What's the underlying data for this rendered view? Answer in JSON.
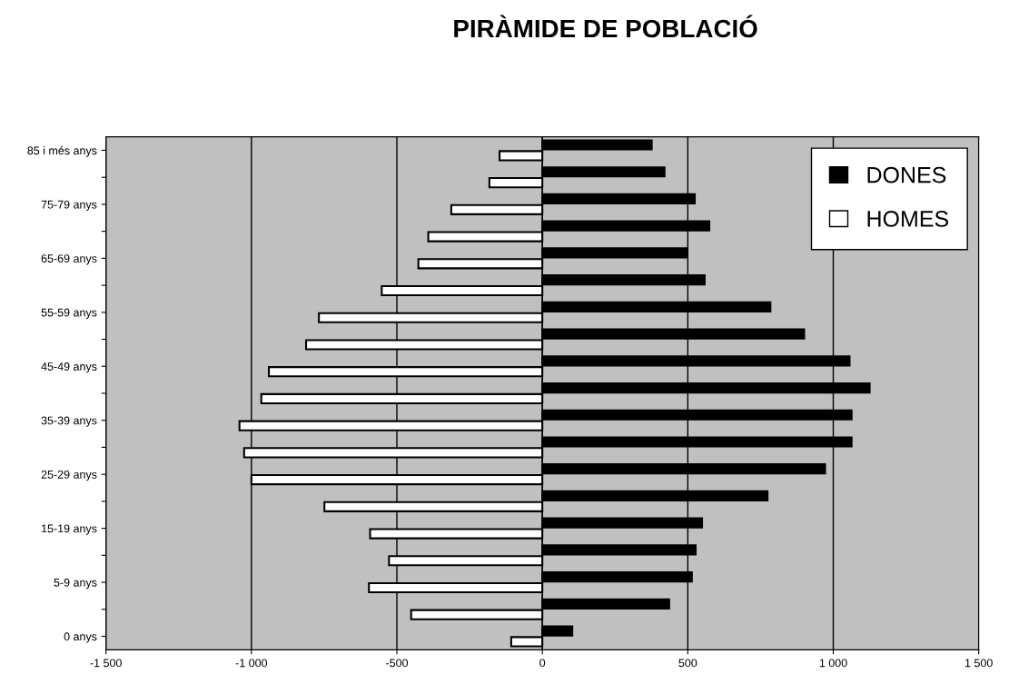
{
  "chart_data": {
    "type": "bar",
    "orientation": "horizontal",
    "title": "PIRÀMIDE DE POBLACIÓ",
    "categories": [
      "85 i més anys",
      null,
      "75-79 anys",
      null,
      "65-69 anys",
      null,
      "55-59 anys",
      null,
      "45-49 anys",
      null,
      "35-39 anys",
      null,
      "25-29 anys",
      null,
      "15-19 anys",
      null,
      "5-9 anys",
      null,
      "0 anys"
    ],
    "series": [
      {
        "name": "DONES",
        "color": "#000000",
        "values": [
          376,
          420,
          524,
          574,
          498,
          558,
          784,
          900,
          1056,
          1125,
          1063,
          1063,
          972,
          774,
          549,
          527,
          514,
          436,
          103
        ]
      },
      {
        "name": "HOMES",
        "color": "#ffffff",
        "values": [
          -147,
          -182,
          -313,
          -392,
          -426,
          -552,
          -768,
          -812,
          -940,
          -966,
          -1041,
          -1025,
          -1000,
          -749,
          -592,
          -527,
          -596,
          -451,
          -107
        ]
      }
    ],
    "xlim": [
      -1500,
      1500
    ],
    "xticks": [
      {
        "value": -1500,
        "label": "-1 500"
      },
      {
        "value": -1000,
        "label": "-1 000"
      },
      -500,
      0,
      500,
      {
        "value": 1000,
        "label": "1 000"
      },
      {
        "value": 1500,
        "label": "1 500"
      }
    ],
    "grid": "x",
    "legend": "top right"
  }
}
